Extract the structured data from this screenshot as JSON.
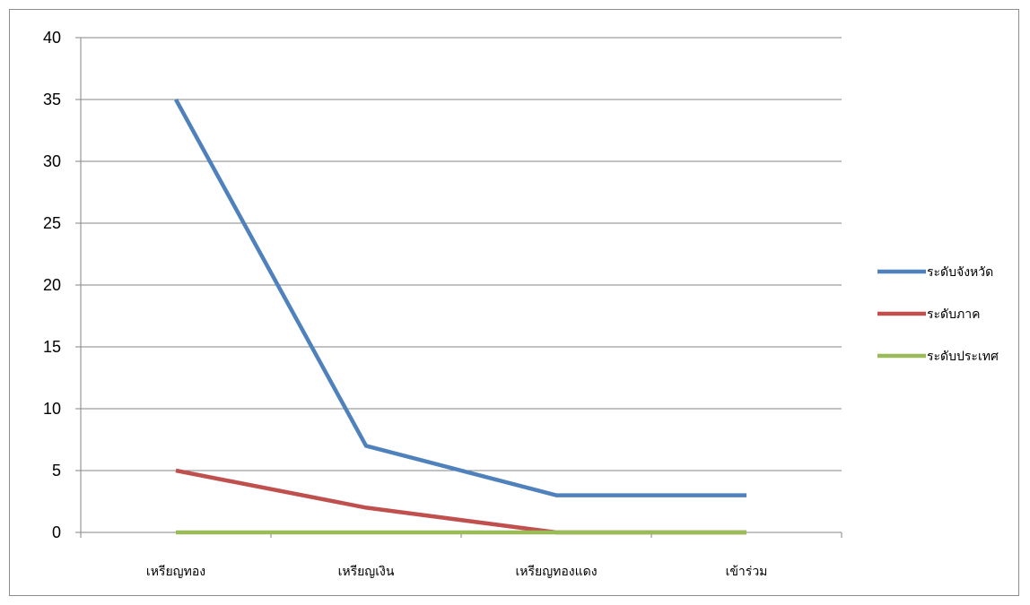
{
  "chart_data": {
    "type": "line",
    "title": "",
    "xlabel": "",
    "ylabel": "",
    "categories": [
      "เหรียญทอง",
      "เหรียญเงิน",
      "เหรียญทองแดง",
      "เข้าร่วม"
    ],
    "ylim": [
      0,
      40
    ],
    "yticks": [
      0,
      5,
      10,
      15,
      20,
      25,
      30,
      35,
      40
    ],
    "grid": true,
    "legend_position": "right",
    "series": [
      {
        "name": "ระดับจังหวัด",
        "color": "#4f81bd",
        "values": [
          35,
          7,
          3,
          3
        ]
      },
      {
        "name": "ระดับภาค",
        "color": "#c0504d",
        "values": [
          5,
          2,
          0,
          0
        ]
      },
      {
        "name": "ระดับประเทศ",
        "color": "#9bbb59",
        "values": [
          0,
          0,
          0,
          0
        ]
      }
    ]
  }
}
